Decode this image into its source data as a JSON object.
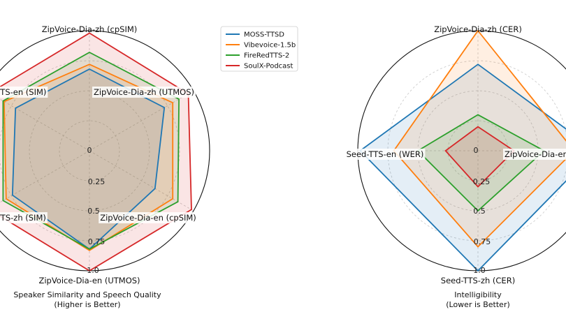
{
  "chart_data": [
    {
      "type": "radar",
      "caption_line1": "Speaker Similarity and Speech Quality",
      "caption_line2": "(Higher is Better)",
      "axes": [
        "ZipVoice-Dia-zh (cpSIM)",
        "ZipVoice-Dia-zh (UTMOS)",
        "ZipVoice-Dia-en (cpSIM)",
        "ZipVoice-Dia-en (UTMOS)",
        "Seed-TTS-zh (SIM)",
        "Seed-TTS-en (SIM)"
      ],
      "radial_ticks": [
        "0",
        "0.25",
        "0.5",
        "0.75",
        "1.0"
      ],
      "rlim": [
        0,
        1
      ],
      "series": [
        {
          "name": "MOSS-TTSD",
          "color": "#1f77b4",
          "values": [
            0.68,
            0.72,
            0.63,
            0.82,
            0.74,
            0.71
          ]
        },
        {
          "name": "Vibevoice-1.5b",
          "color": "#ff7f0e",
          "values": [
            0.72,
            0.8,
            0.8,
            0.83,
            0.8,
            0.82
          ]
        },
        {
          "name": "FireRedTTS-2",
          "color": "#2ca02c",
          "values": [
            0.82,
            0.86,
            0.85,
            0.82,
            0.83,
            0.83
          ]
        },
        {
          "name": "SoulX-Podcast",
          "color": "#d62728",
          "values": [
            0.98,
            0.95,
            0.98,
            1.0,
            0.97,
            0.96
          ]
        }
      ]
    },
    {
      "type": "radar",
      "caption_line1": "Intelligibility",
      "caption_line2": "(Lower is Better)",
      "axes": [
        "ZipVoice-Dia-zh (CER)",
        "ZipVoice-Dia-en",
        "Seed-TTS-zh (CER)",
        "Seed-TTS-en (WER)"
      ],
      "radial_ticks": [
        "0",
        "0.25",
        "0.5",
        "0.75",
        "1.0"
      ],
      "rlim": [
        0,
        1
      ],
      "series": [
        {
          "name": "MOSS-TTSD",
          "color": "#1f77b4",
          "values": [
            0.72,
            0.98,
            1.0,
            0.98
          ]
        },
        {
          "name": "Vibevoice-1.5b",
          "color": "#ff7f0e",
          "values": [
            1.0,
            0.8,
            0.8,
            0.7
          ]
        },
        {
          "name": "FireRedTTS-2",
          "color": "#2ca02c",
          "values": [
            0.3,
            0.55,
            0.5,
            0.5
          ]
        },
        {
          "name": "SoulX-Podcast",
          "color": "#d62728",
          "values": [
            0.2,
            0.3,
            0.3,
            0.27
          ]
        }
      ]
    }
  ],
  "legend": [
    {
      "name": "MOSS-TTSD",
      "color": "#1f77b4"
    },
    {
      "name": "Vibevoice-1.5b",
      "color": "#ff7f0e"
    },
    {
      "name": "FireRedTTS-2",
      "color": "#2ca02c"
    },
    {
      "name": "SoulX-Podcast",
      "color": "#d62728"
    }
  ]
}
